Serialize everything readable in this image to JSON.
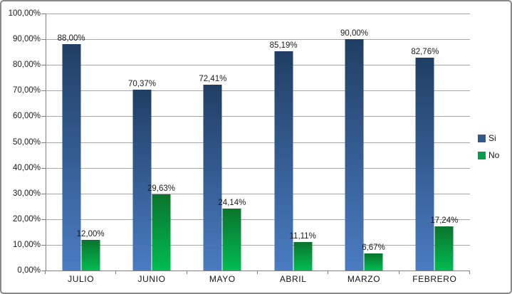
{
  "chart_data": {
    "type": "bar",
    "title": "",
    "categories": [
      "JULIO",
      "JUNIO",
      "MAYO",
      "ABRIL",
      "MARZO",
      "FEBRERO"
    ],
    "series": [
      {
        "name": "Si",
        "values": [
          88.0,
          70.37,
          72.41,
          85.19,
          90.0,
          82.76
        ],
        "labels": [
          "88,00%",
          "70,37%",
          "72,41%",
          "85,19%",
          "90,00%",
          "82,76%"
        ],
        "color_top": "#203E63",
        "color_bottom": "#4A7CC2",
        "legend_color": "#31598C"
      },
      {
        "name": "No",
        "values": [
          12.0,
          29.63,
          24.14,
          11.11,
          6.67,
          17.24
        ],
        "labels": [
          "12,00%",
          "29,63%",
          "24,14%",
          "11,11%",
          "6,67%",
          "17,24%"
        ],
        "color_top": "#0B742C",
        "color_bottom": "#00BC52",
        "legend_color": "#00A04A"
      }
    ],
    "y_axis": {
      "min": 0,
      "max": 100,
      "step": 10,
      "tick_labels": [
        "0,00%",
        "10,00%",
        "20,00%",
        "30,00%",
        "40,00%",
        "50,00%",
        "60,00%",
        "70,00%",
        "80,00%",
        "90,00%",
        "100,00%"
      ]
    },
    "grid": true,
    "legend_position": "right",
    "data_labels": "outside-end"
  },
  "colors": {
    "gridline": "#A6A6A6",
    "axis": "#808080",
    "text": "#1A1A1A",
    "frame_border": "#898989",
    "background": "#FFFFFF"
  }
}
